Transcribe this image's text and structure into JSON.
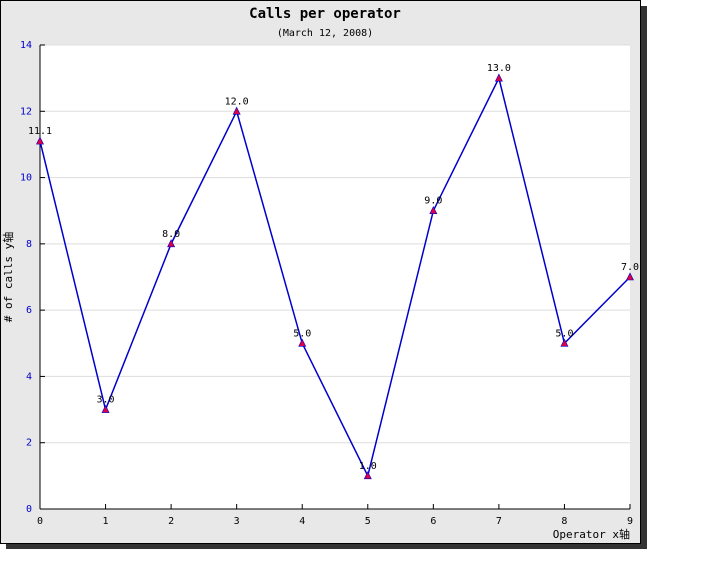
{
  "chart_data": {
    "type": "line",
    "title": "Calls per operator",
    "subtitle": "(March 12, 2008)",
    "x_label": "Operator x轴",
    "y_label": "# of calls y轴",
    "x": [
      0,
      1,
      2,
      3,
      4,
      5,
      6,
      7,
      8,
      9
    ],
    "series": [
      {
        "color": "#0000cc",
        "marker_color": "#dd0044",
        "values": [
          11.1,
          3,
          8,
          12,
          5,
          1,
          9,
          13,
          5,
          7
        ],
        "value_labels": [
          "11.1",
          "3.0",
          "8.0",
          "12.0",
          "5.0",
          "1.0",
          "9.0",
          "13.0",
          "5.0",
          "7.0"
        ]
      }
    ],
    "xlim": [
      0,
      9
    ],
    "xticks": [
      0,
      1,
      2,
      3,
      4,
      5,
      6,
      7,
      8,
      9
    ],
    "ylim": [
      0,
      14
    ],
    "yticks": [
      0,
      2,
      4,
      6,
      8,
      10,
      12,
      14
    ],
    "grid": true
  }
}
